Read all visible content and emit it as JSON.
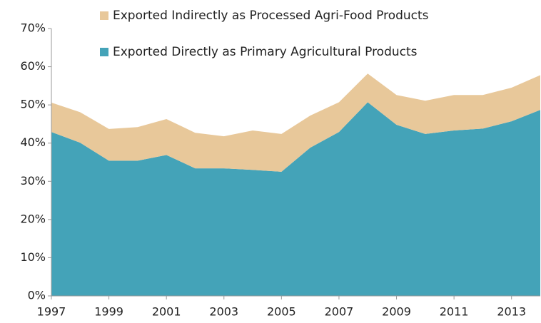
{
  "chart_data": {
    "type": "stacked_area",
    "x": [
      1997,
      1998,
      1999,
      2000,
      2001,
      2002,
      2003,
      2004,
      2005,
      2006,
      2007,
      2008,
      2009,
      2010,
      2011,
      2012,
      2013,
      2014
    ],
    "series": [
      {
        "name": "Exported Directly as Primary Agricultural Products",
        "color": "#44a3b8",
        "values": [
          42.9,
          40.1,
          35.4,
          35.4,
          36.9,
          33.4,
          33.4,
          33.0,
          32.5,
          38.8,
          42.9,
          50.7,
          44.8,
          42.4,
          43.3,
          43.8,
          45.7,
          48.7
        ]
      },
      {
        "name": "Exported Indirectly  as Processed Agri-Food Products",
        "color": "#e8c89a",
        "values": [
          7.7,
          8.0,
          8.3,
          8.8,
          9.4,
          9.3,
          8.4,
          10.3,
          9.9,
          8.4,
          7.8,
          7.5,
          7.8,
          8.7,
          9.3,
          8.8,
          8.8,
          9.1
        ]
      }
    ],
    "xlim": [
      1997,
      2014
    ],
    "xticks": [
      1997,
      1999,
      2001,
      2003,
      2005,
      2007,
      2009,
      2011,
      2013
    ],
    "ylim": [
      0,
      70
    ],
    "yticks": [
      {
        "value": 0,
        "label": "0%"
      },
      {
        "value": 10,
        "label": "10%"
      },
      {
        "value": 20,
        "label": "20%"
      },
      {
        "value": 30,
        "label": "30%"
      },
      {
        "value": 40,
        "label": "40%"
      },
      {
        "value": 50,
        "label": "50%"
      },
      {
        "value": 60,
        "label": "60%"
      },
      {
        "value": 70,
        "label": "70%"
      }
    ]
  }
}
